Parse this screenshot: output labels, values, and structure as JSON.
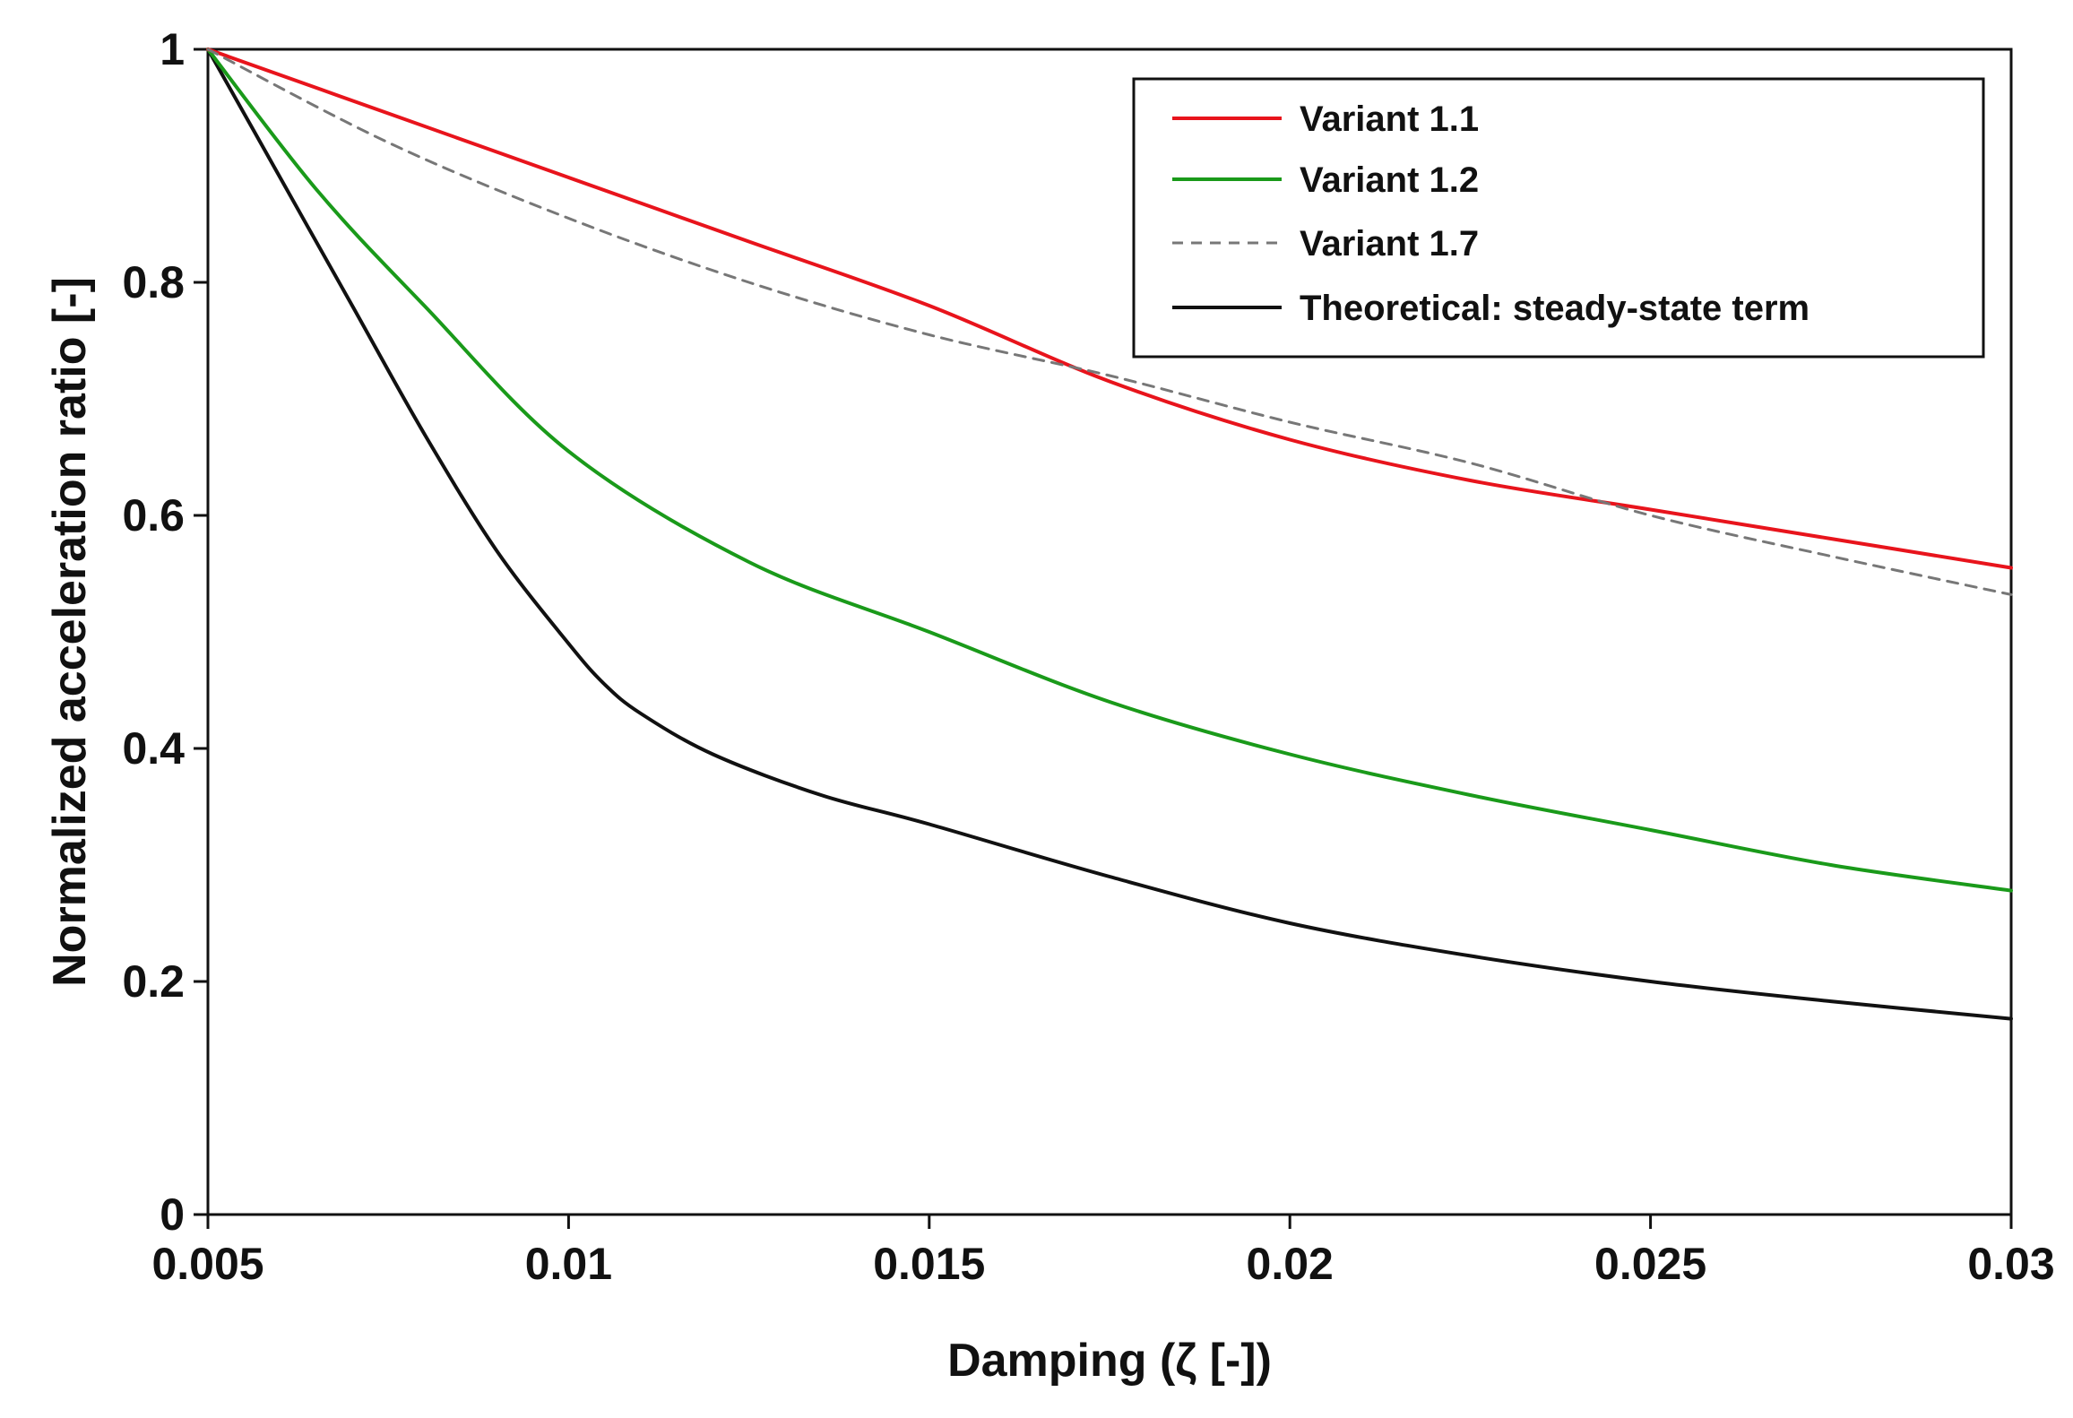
{
  "chart_data": {
    "type": "line",
    "title": "",
    "xlabel": "Damping (ζ  [-])",
    "ylabel": "Normalized acceleration ratio [-]",
    "xlim": [
      0.005,
      0.03
    ],
    "ylim": [
      0,
      1
    ],
    "xticks": [
      0.005,
      0.01,
      0.015,
      0.02,
      0.025,
      0.03
    ],
    "xtick_labels": [
      "0.005",
      "0.01",
      "0.015",
      "0.02",
      "0.025",
      "0.03"
    ],
    "yticks": [
      0,
      0.2,
      0.4,
      0.6,
      0.8,
      1
    ],
    "ytick_labels": [
      "0",
      "0.2",
      "0.4",
      "0.6",
      "0.8",
      "1"
    ],
    "grid": false,
    "legend_position": "top-right",
    "series": [
      {
        "name": "Variant 1.1",
        "color": "#e8141c",
        "dash": "solid",
        "x": [
          0.005,
          0.0075,
          0.01,
          0.0125,
          0.015,
          0.0175,
          0.02,
          0.0225,
          0.025,
          0.0275,
          0.03
        ],
        "y": [
          1.0,
          0.945,
          0.89,
          0.835,
          0.78,
          0.715,
          0.665,
          0.63,
          0.605,
          0.58,
          0.555
        ]
      },
      {
        "name": "Variant 1.2",
        "color": "#1a9a1a",
        "dash": "solid",
        "x": [
          0.005,
          0.0065,
          0.008,
          0.01,
          0.0125,
          0.015,
          0.0175,
          0.02,
          0.0225,
          0.025,
          0.0275,
          0.03
        ],
        "y": [
          1.0,
          0.88,
          0.78,
          0.655,
          0.56,
          0.5,
          0.44,
          0.395,
          0.36,
          0.33,
          0.3,
          0.278
        ]
      },
      {
        "name": "Variant 1.7",
        "color": "#777777",
        "dash": "dashed",
        "x": [
          0.005,
          0.0075,
          0.01,
          0.0125,
          0.015,
          0.0175,
          0.02,
          0.0225,
          0.025,
          0.0275,
          0.03
        ],
        "y": [
          1.0,
          0.92,
          0.855,
          0.8,
          0.755,
          0.72,
          0.68,
          0.645,
          0.6,
          0.565,
          0.532
        ]
      },
      {
        "name": "Theoretical: steady-state term",
        "color": "#111111",
        "dash": "solid",
        "x": [
          0.005,
          0.006,
          0.007,
          0.008,
          0.009,
          0.01,
          0.0105,
          0.011,
          0.012,
          0.0135,
          0.015,
          0.0175,
          0.02,
          0.0225,
          0.025,
          0.0275,
          0.03
        ],
        "y": [
          1.0,
          0.89,
          0.78,
          0.67,
          0.57,
          0.49,
          0.455,
          0.43,
          0.395,
          0.36,
          0.335,
          0.29,
          0.25,
          0.222,
          0.2,
          0.183,
          0.168
        ]
      }
    ]
  }
}
